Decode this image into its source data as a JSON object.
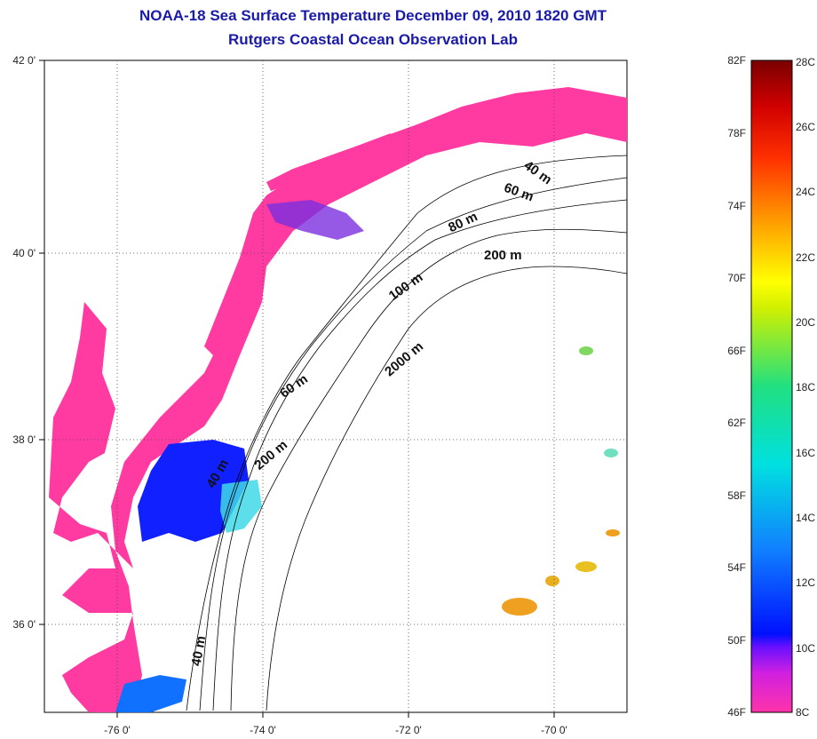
{
  "title": {
    "line1": "NOAA-18 Sea Surface Temperature December 09, 2010 1820 GMT",
    "line2": "Rutgers Coastal Ocean Observation Lab"
  },
  "map": {
    "lon_range": [
      -77,
      -69
    ],
    "lat_range": [
      35,
      42
    ],
    "x_ticks": [
      "-76 0'",
      "-74 0'",
      "-72 0'",
      "-70 0'"
    ],
    "y_ticks": [
      "42 0'",
      "40 0'",
      "38 0'",
      "36 0'"
    ],
    "isobath_labels": [
      "40 m",
      "60 m",
      "80 m",
      "200 m",
      "100 m",
      "2000 m",
      "60 m",
      "200 m",
      "40 m",
      "40 m"
    ],
    "colors": {
      "land": "#ffffff",
      "cold_water": "#ff3aa0",
      "cool_water": "#1020ff",
      "warm_water": "#f0a020"
    }
  },
  "colorbar": {
    "fahrenheit_labels": [
      "82F",
      "78F",
      "74F",
      "70F",
      "66F",
      "62F",
      "58F",
      "54F",
      "50F",
      "46F"
    ],
    "celsius_labels": [
      "28C",
      "26C",
      "24C",
      "22C",
      "20C",
      "18C",
      "16C",
      "14C",
      "12C",
      "10C",
      "8C"
    ],
    "min_c": 8,
    "max_c": 28
  }
}
